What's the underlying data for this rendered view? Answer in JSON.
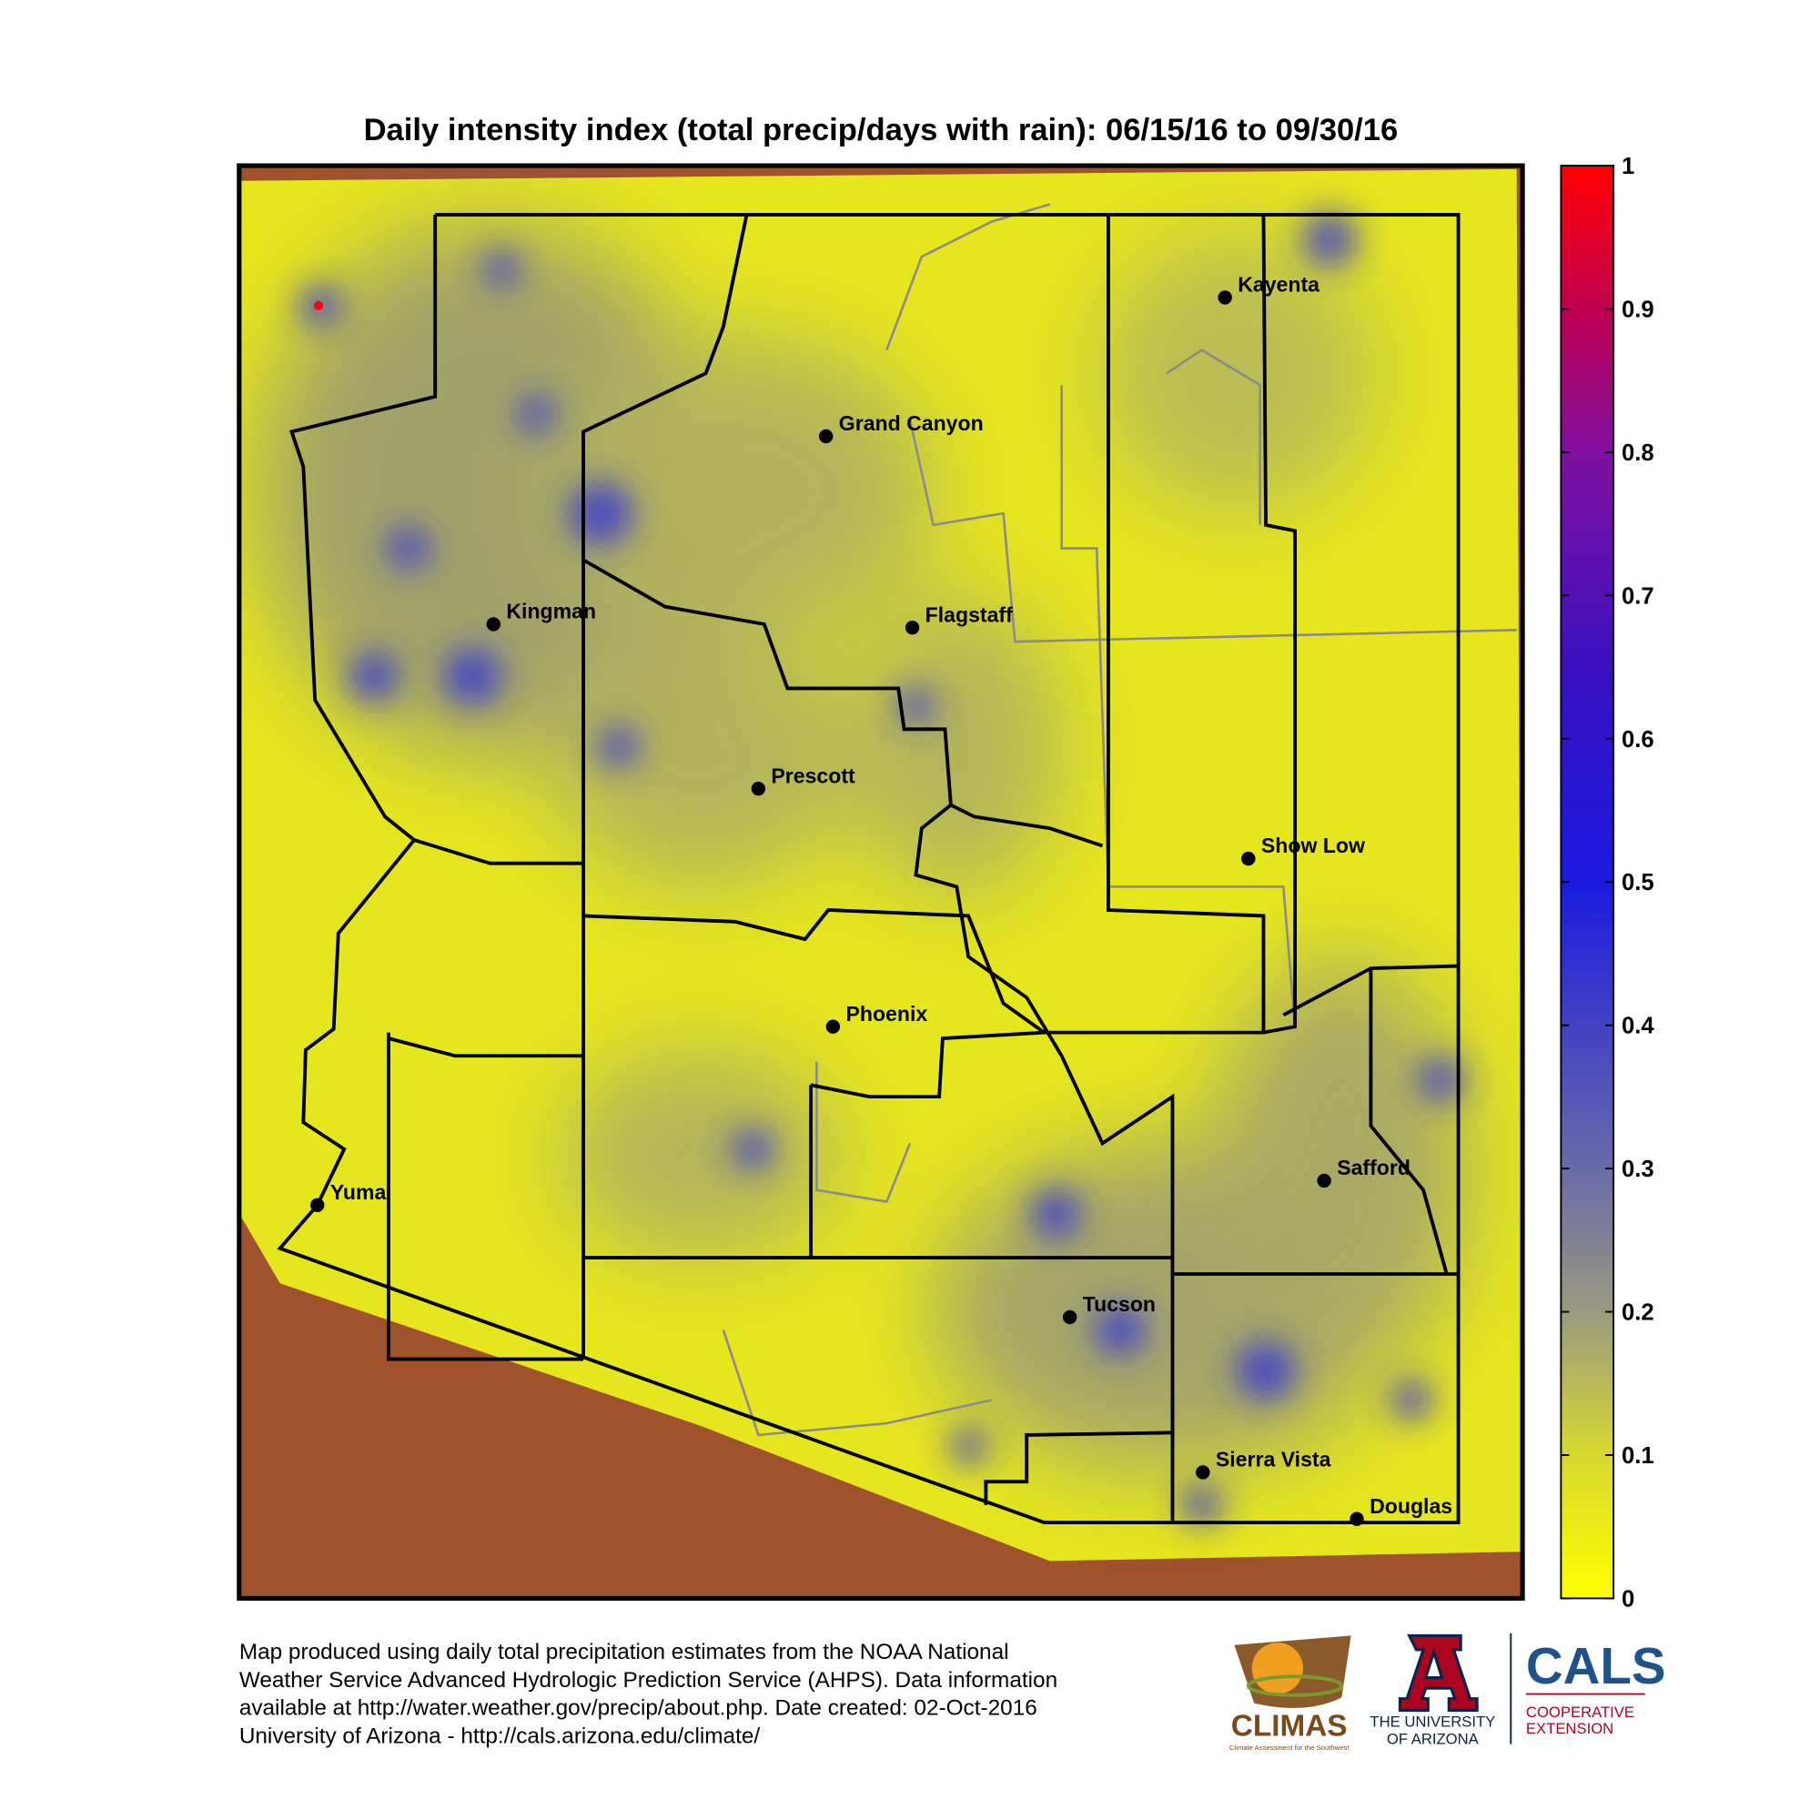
{
  "title": "Daily intensity index (total precip/days with rain): 06/15/16 to 09/30/16",
  "cities": [
    "Kayenta",
    "Grand Canyon",
    "Kingman",
    "Flagstaff",
    "Prescott",
    "Show Low",
    "Phoenix",
    "Yuma",
    "Safford",
    "Tucson",
    "Sierra Vista",
    "Douglas"
  ],
  "colorbar": {
    "ticks": [
      0,
      0.1,
      0.2,
      0.3,
      0.4,
      0.5,
      0.6,
      0.7,
      0.8,
      0.9,
      1
    ]
  },
  "footer": [
    "Map produced using daily total precipitation estimates from the NOAA National",
    "Weather Service Advanced Hydrologic Prediction Service (AHPS). Data information",
    "available at http://water.weather.gov/precip/about.php. Date created: 02-Oct-2016",
    "University of Arizona - http://cals.arizona.edu/climate/"
  ],
  "logos": {
    "climas": "CLIMAS",
    "climas_tagline": "Climate Assessment for the Southwest",
    "ua": [
      "THE UNIVERSITY",
      "OF ARIZONA"
    ],
    "cals": "CALS",
    "cals_sub": [
      "COOPERATIVE",
      "EXTENSION"
    ]
  }
}
